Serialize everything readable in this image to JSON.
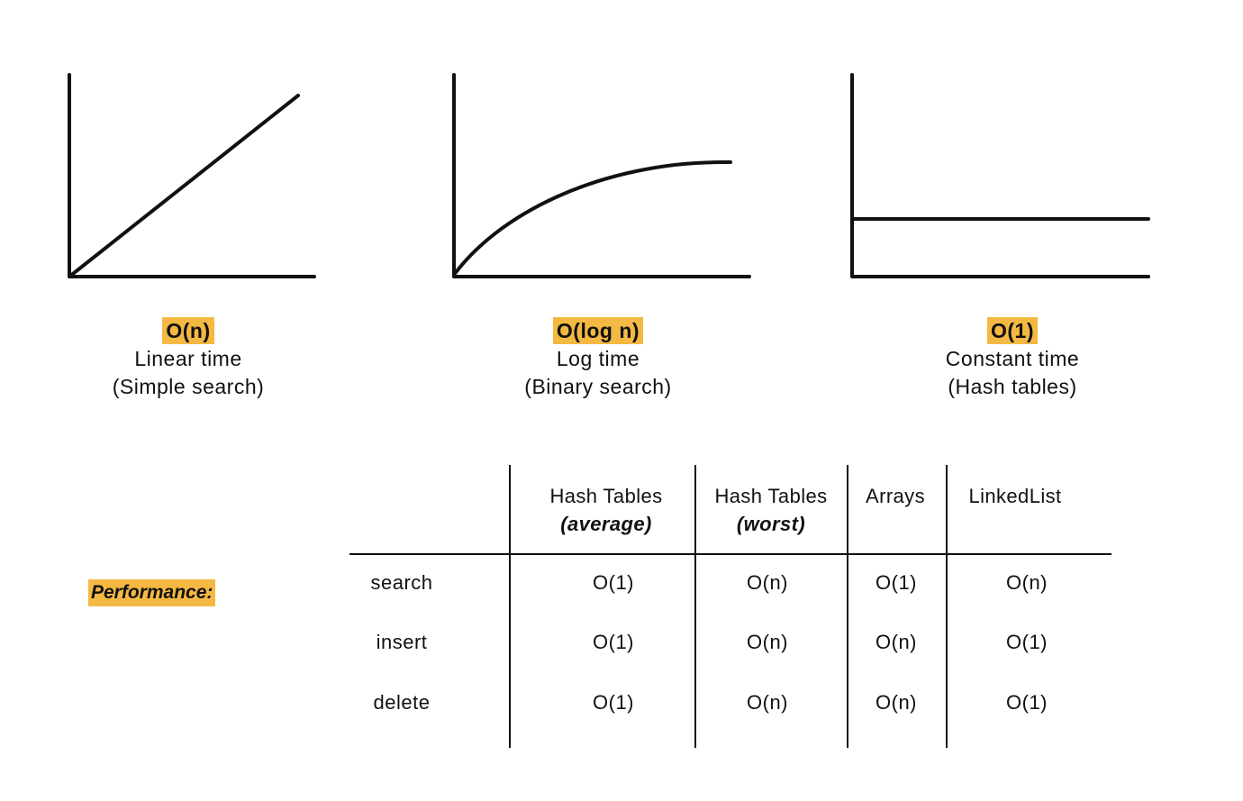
{
  "colors": {
    "highlight": "#F4B942",
    "ink": "#111111",
    "background": "#FFFFFF"
  },
  "graphs": [
    {
      "notation": "O(n)",
      "name": "Linear time",
      "example": "(Simple search)",
      "curve": "linear"
    },
    {
      "notation": "O(log n)",
      "name": "Log time",
      "example": "(Binary search)",
      "curve": "logarithmic"
    },
    {
      "notation": "O(1)",
      "name": "Constant time",
      "example": "(Hash tables)",
      "curve": "constant"
    }
  ],
  "performance": {
    "label": "Performance:",
    "columns": [
      {
        "title": "Hash Tables",
        "subtitle": "(average)"
      },
      {
        "title": "Hash Tables",
        "subtitle": "(worst)"
      },
      {
        "title": "Arrays",
        "subtitle": ""
      },
      {
        "title": "LinkedList",
        "subtitle": ""
      }
    ],
    "rows": [
      {
        "operation": "search",
        "values": [
          "O(1)",
          "O(n)",
          "O(1)",
          "O(n)"
        ]
      },
      {
        "operation": "insert",
        "values": [
          "O(1)",
          "O(n)",
          "O(n)",
          "O(1)"
        ]
      },
      {
        "operation": "delete",
        "values": [
          "O(1)",
          "O(n)",
          "O(n)",
          "O(1)"
        ]
      }
    ]
  }
}
